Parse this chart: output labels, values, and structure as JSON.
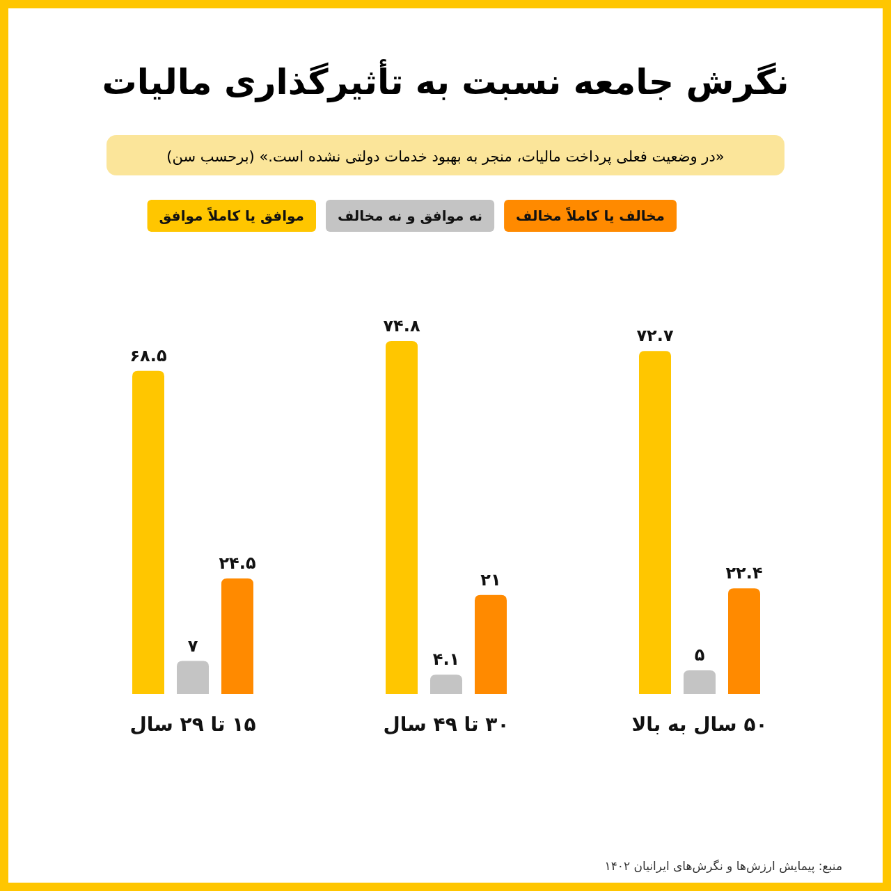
{
  "chart_data": {
    "type": "bar",
    "title": "نگرش جامعه نسبت به تأثیرگذاری مالیات",
    "subtitle": "«در وضعیت فعلی پرداخت مالیات، منجر به بهبود خدمات دولتی نشده است.» (برحسب سن)",
    "categories": [
      "۱۵ تا ۲۹ سال",
      "۳۰ تا ۴۹ سال",
      "۵۰ سال به بالا"
    ],
    "series": [
      {
        "name": "موافق یا کاملاً موافق",
        "color": "#ffc600",
        "values": [
          68.5,
          74.8,
          72.7
        ],
        "value_labels": [
          "۶۸.۵",
          "۷۴.۸",
          "۷۲.۷"
        ]
      },
      {
        "name": "نه موافق و نه مخالف",
        "color": "#c4c4c4",
        "values": [
          7,
          4.1,
          5
        ],
        "value_labels": [
          "۷",
          "۴.۱",
          "۵"
        ]
      },
      {
        "name": "مخالف یا کاملاً مخالف",
        "color": "#ff8a00",
        "values": [
          24.5,
          21,
          22.4
        ],
        "value_labels": [
          "۲۴.۵",
          "۲۱",
          "۲۲.۴"
        ]
      }
    ],
    "legend": "top",
    "annotations": [
      "منبع: پیمایش ارزش‌ها و نگرش‌های ایرانیان ۱۴۰۲"
    ]
  }
}
